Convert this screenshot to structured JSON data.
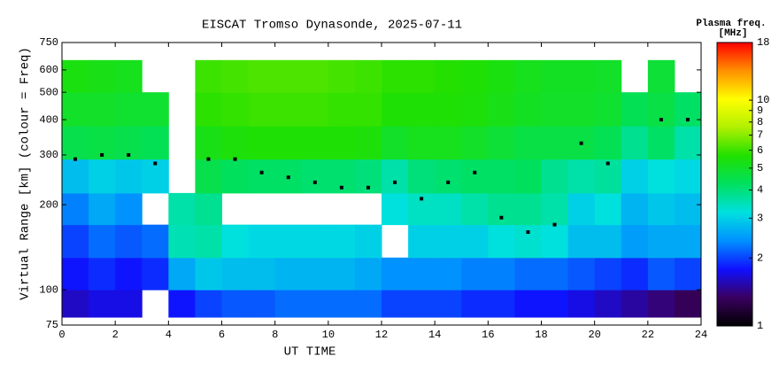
{
  "chart_data": {
    "type": "heatmap",
    "title": "EISCAT Tromso Dynasonde, 2025-07-11",
    "x_label": "UT TIME",
    "y_label": "Virtual Range [km] (colour = Freq)",
    "colorbar_title": "Plasma freq.",
    "colorbar_units": "[MHz]",
    "xlim": [
      0,
      24
    ],
    "xticks": [
      0,
      2,
      4,
      6,
      8,
      10,
      12,
      14,
      16,
      18,
      20,
      22,
      24
    ],
    "ylim": [
      75,
      750
    ],
    "yticks": [
      75,
      100,
      200,
      300,
      400,
      500,
      600,
      750
    ],
    "ylog": true,
    "clim": [
      1,
      18
    ],
    "cticks": [
      1,
      2,
      3,
      4,
      5,
      6,
      7,
      8,
      9,
      10,
      18
    ],
    "clog": true,
    "colormap": [
      "#000000",
      "#3a0060",
      "#1010ff",
      "#0090ff",
      "#00e0e0",
      "#00e060",
      "#20e000",
      "#b0f000",
      "#ffff00",
      "#ff9000",
      "#ff0000"
    ],
    "x_edges": [
      0,
      1,
      2,
      3,
      4,
      5,
      6,
      7,
      8,
      9,
      10,
      11,
      12,
      13,
      14,
      15,
      16,
      17,
      18,
      19,
      20,
      21,
      22,
      23,
      24
    ],
    "range_edges": [
      80,
      100,
      130,
      170,
      220,
      290,
      380,
      500,
      650
    ],
    "values": [
      [
        1.6,
        1.7,
        1.7,
        null,
        1.8,
        2.0,
        2.1,
        2.1,
        2.2,
        2.2,
        2.2,
        2.2,
        2.0,
        2.0,
        2.0,
        1.9,
        1.9,
        1.8,
        1.8,
        1.7,
        1.6,
        1.5,
        1.4,
        1.3
      ],
      [
        1.8,
        1.9,
        1.8,
        1.9,
        2.6,
        2.9,
        2.8,
        2.8,
        2.7,
        2.7,
        2.7,
        2.6,
        2.4,
        2.4,
        2.4,
        2.3,
        2.3,
        2.2,
        2.2,
        2.1,
        2.0,
        1.9,
        2.1,
        2.0
      ],
      [
        2.0,
        2.2,
        2.1,
        2.2,
        3.5,
        3.6,
        3.2,
        3.1,
        3.1,
        3.1,
        3.1,
        3.0,
        null,
        3.0,
        3.0,
        3.0,
        3.2,
        3.3,
        3.2,
        2.8,
        2.8,
        2.5,
        2.6,
        2.6
      ],
      [
        2.3,
        2.6,
        2.4,
        null,
        3.6,
        3.8,
        null,
        null,
        null,
        null,
        null,
        null,
        3.2,
        3.4,
        3.4,
        3.6,
        3.8,
        3.8,
        3.6,
        3.0,
        3.2,
        2.7,
        2.9,
        2.8
      ],
      [
        2.8,
        3.0,
        2.9,
        3.0,
        null,
        4.5,
        4.3,
        4.2,
        4.2,
        4.1,
        4.1,
        4.0,
        3.6,
        4.0,
        4.1,
        4.2,
        4.2,
        4.3,
        3.8,
        3.6,
        3.7,
        3.0,
        3.2,
        3.1
      ],
      [
        4.5,
        4.6,
        4.5,
        4.4,
        null,
        5.3,
        5.5,
        5.6,
        5.6,
        5.6,
        5.6,
        5.5,
        5.0,
        5.2,
        5.2,
        5.0,
        4.8,
        4.6,
        4.6,
        4.6,
        4.4,
        3.8,
        4.2,
        3.6
      ],
      [
        5.0,
        5.0,
        4.9,
        4.9,
        null,
        5.8,
        5.9,
        6.0,
        6.0,
        6.0,
        5.9,
        5.9,
        5.6,
        5.6,
        5.6,
        5.5,
        5.3,
        5.1,
        5.0,
        5.0,
        4.9,
        4.4,
        4.6,
        4.2
      ],
      [
        5.4,
        5.3,
        5.2,
        null,
        null,
        6.0,
        6.1,
        6.2,
        6.2,
        6.2,
        6.1,
        6.0,
        5.8,
        5.8,
        5.7,
        5.6,
        5.4,
        5.2,
        5.1,
        5.1,
        5.0,
        null,
        4.8,
        null
      ]
    ],
    "trace": {
      "color": "#000000",
      "x": [
        0.5,
        1.5,
        2.5,
        3.5,
        4.5,
        5.5,
        6.5,
        7.5,
        8.5,
        9.5,
        10.5,
        11.5,
        12.5,
        13.5,
        14.5,
        15.5,
        16.5,
        17.5,
        18.5,
        19.5,
        20.5,
        21.5,
        22.5,
        23.5
      ],
      "y": [
        290,
        300,
        300,
        280,
        null,
        290,
        290,
        260,
        250,
        240,
        230,
        230,
        240,
        210,
        240,
        260,
        180,
        160,
        170,
        330,
        280,
        null,
        400,
        400
      ]
    }
  }
}
